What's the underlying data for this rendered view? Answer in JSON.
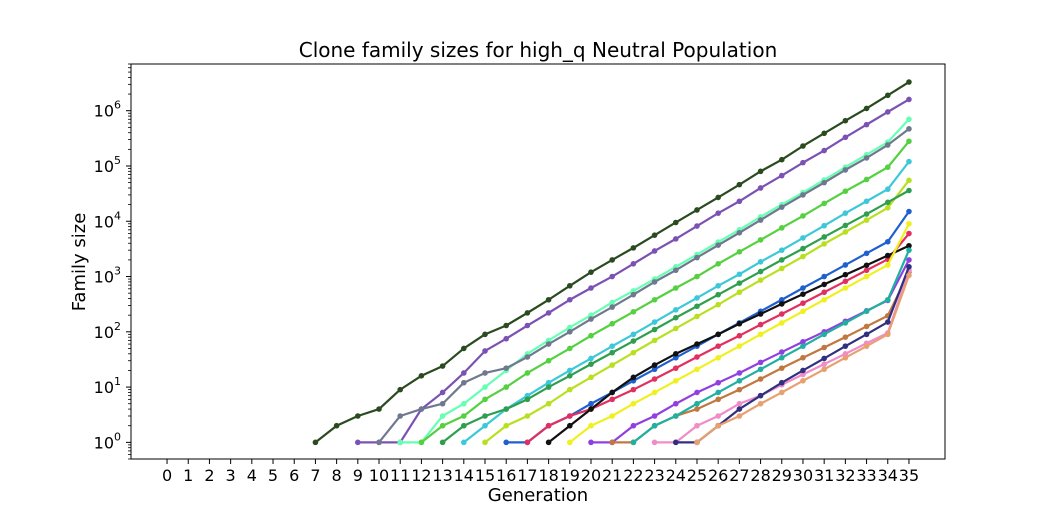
{
  "chart_data": {
    "type": "line",
    "title": "Clone family sizes for high_q Neutral Population",
    "xlabel": "Generation",
    "ylabel": "Family size",
    "x_ticks": [
      "0",
      "1",
      "2",
      "3",
      "4",
      "5",
      "6",
      "7",
      "8",
      "9",
      "10",
      "11",
      "12",
      "13",
      "14",
      "15",
      "16",
      "17",
      "18",
      "19",
      "20",
      "21",
      "22",
      "23",
      "24",
      "25",
      "26",
      "27",
      "28",
      "29",
      "30",
      "31",
      "32",
      "33",
      "34",
      "35"
    ],
    "xlim": [
      -1.7,
      36.7
    ],
    "y_scale": "log",
    "ylim": [
      0.5,
      7000000
    ],
    "y_ticks": [
      1,
      10,
      100,
      1000,
      10000,
      100000,
      1000000
    ],
    "y_tick_labels": [
      {
        "base": "10",
        "exp": "0"
      },
      {
        "base": "10",
        "exp": "1"
      },
      {
        "base": "10",
        "exp": "2"
      },
      {
        "base": "10",
        "exp": "3"
      },
      {
        "base": "10",
        "exp": "4"
      },
      {
        "base": "10",
        "exp": "5"
      },
      {
        "base": "10",
        "exp": "6"
      }
    ],
    "grid": false,
    "legend": "none",
    "marker": "circle",
    "series": [
      {
        "color": "#2a4a1f",
        "x": [
          7,
          8,
          9,
          10,
          11,
          12,
          13,
          14,
          15,
          16,
          17,
          18,
          19,
          20,
          21,
          22,
          23,
          24,
          25,
          26,
          27,
          28,
          29,
          30,
          31,
          32,
          33,
          34,
          35
        ],
        "y": [
          1,
          2,
          3,
          4,
          9,
          16,
          24,
          50,
          90,
          130,
          220,
          380,
          680,
          1200,
          2000,
          3300,
          5600,
          9500,
          16000,
          27000,
          46000,
          80000,
          130000,
          230000,
          390000,
          660000,
          1100000,
          1900000,
          3300000
        ]
      },
      {
        "color": "#7b52b4",
        "x": [
          9,
          10,
          11,
          12,
          13,
          14,
          15,
          16,
          17,
          18,
          19,
          20,
          21,
          22,
          23,
          24,
          25,
          26,
          27,
          28,
          29,
          30,
          31,
          32,
          33,
          34,
          35
        ],
        "y": [
          1,
          1,
          1,
          4,
          8,
          18,
          45,
          75,
          130,
          220,
          380,
          620,
          1000,
          1700,
          2900,
          4800,
          8200,
          14000,
          23000,
          40000,
          67000,
          115000,
          190000,
          330000,
          560000,
          950000,
          1600000
        ]
      },
      {
        "color": "#66ffb3",
        "x": [
          11,
          12,
          13,
          14,
          15,
          16,
          17,
          18,
          19,
          20,
          21,
          22,
          23,
          24,
          25,
          26,
          27,
          28,
          29,
          30,
          31,
          32,
          33,
          34,
          35
        ],
        "y": [
          1,
          1,
          3,
          5,
          10,
          20,
          40,
          70,
          120,
          200,
          340,
          550,
          900,
          1500,
          2500,
          4200,
          7000,
          12000,
          20000,
          33000,
          56000,
          95000,
          160000,
          270000,
          700000
        ]
      },
      {
        "color": "#707890",
        "x": [
          10,
          11,
          12,
          13,
          14,
          15,
          16,
          17,
          18,
          19,
          20,
          21,
          22,
          23,
          24,
          25,
          26,
          27,
          28,
          29,
          30,
          31,
          32,
          33,
          34,
          35
        ],
        "y": [
          1,
          3,
          4,
          5,
          12,
          18,
          22,
          35,
          60,
          100,
          170,
          280,
          470,
          800,
          1300,
          2200,
          3700,
          6200,
          10500,
          18000,
          30000,
          50000,
          85000,
          140000,
          240000,
          470000
        ]
      },
      {
        "color": "#55d040",
        "x": [
          12,
          13,
          14,
          15,
          16,
          17,
          18,
          19,
          20,
          21,
          22,
          23,
          24,
          25,
          26,
          27,
          28,
          29,
          30,
          31,
          32,
          33,
          34,
          35
        ],
        "y": [
          1,
          2,
          3,
          6,
          10,
          18,
          30,
          50,
          85,
          140,
          230,
          380,
          620,
          1000,
          1700,
          2800,
          4600,
          7600,
          12500,
          21000,
          35000,
          57000,
          95000,
          280000
        ]
      },
      {
        "color": "#3cc8d8",
        "x": [
          14,
          15,
          16,
          17,
          18,
          19,
          20,
          21,
          22,
          23,
          24,
          25,
          26,
          27,
          28,
          29,
          30,
          31,
          32,
          33,
          34,
          35
        ],
        "y": [
          1,
          2,
          4,
          7,
          12,
          20,
          33,
          55,
          90,
          150,
          250,
          410,
          680,
          1100,
          1850,
          3000,
          5000,
          8300,
          14000,
          23000,
          38000,
          120000
        ]
      },
      {
        "color": "#b8e020",
        "x": [
          15,
          16,
          17,
          18,
          19,
          20,
          21,
          22,
          23,
          24,
          25,
          26,
          27,
          28,
          29,
          30,
          31,
          32,
          33,
          34,
          35
        ],
        "y": [
          1,
          2,
          3,
          5,
          9,
          15,
          25,
          42,
          70,
          115,
          190,
          310,
          520,
          860,
          1400,
          2300,
          3900,
          6400,
          10500,
          17500,
          55000
        ]
      },
      {
        "color": "#2f9e4f",
        "x": [
          13,
          14,
          15,
          16,
          17,
          18,
          19,
          20,
          21,
          22,
          23,
          24,
          25,
          26,
          27,
          28,
          29,
          30,
          31,
          32,
          33,
          34,
          35
        ],
        "y": [
          1,
          2,
          3,
          4,
          6,
          10,
          16,
          26,
          42,
          68,
          110,
          180,
          290,
          470,
          760,
          1230,
          2000,
          3200,
          5200,
          8400,
          13500,
          22000,
          36000
        ]
      },
      {
        "color": "#1f5fd0",
        "x": [
          16,
          17,
          18,
          19,
          20,
          21,
          22,
          23,
          24,
          25,
          26,
          27,
          28,
          29,
          30,
          31,
          32,
          33,
          34,
          35
        ],
        "y": [
          1,
          1,
          2,
          3,
          5,
          8,
          13,
          21,
          34,
          55,
          90,
          145,
          235,
          380,
          620,
          1000,
          1620,
          2630,
          4260,
          15000
        ]
      },
      {
        "color": "#e03060",
        "x": [
          17,
          18,
          19,
          20,
          21,
          22,
          23,
          24,
          25,
          26,
          27,
          28,
          29,
          30,
          31,
          32,
          33,
          34,
          35
        ],
        "y": [
          1,
          2,
          3,
          4,
          6,
          9,
          14,
          22,
          35,
          55,
          85,
          135,
          210,
          330,
          520,
          820,
          1300,
          2050,
          6000
        ]
      },
      {
        "color": "#111111",
        "x": [
          18,
          19,
          20,
          21,
          22,
          23,
          24,
          25,
          26,
          27,
          28,
          29,
          30,
          31,
          32,
          33,
          34,
          35
        ],
        "y": [
          1,
          2,
          4,
          8,
          15,
          25,
          40,
          60,
          90,
          140,
          210,
          320,
          480,
          720,
          1080,
          1600,
          2400,
          3600
        ]
      },
      {
        "color": "#f0f020",
        "x": [
          19,
          20,
          21,
          22,
          23,
          24,
          25,
          26,
          27,
          28,
          29,
          30,
          31,
          32,
          33,
          34,
          35
        ],
        "y": [
          1,
          2,
          3,
          5,
          8,
          13,
          21,
          34,
          55,
          90,
          145,
          235,
          380,
          620,
          1000,
          1620,
          9000
        ]
      },
      {
        "color": "#9040e0",
        "x": [
          20,
          21,
          22,
          23,
          24,
          25,
          26,
          27,
          28,
          29,
          30,
          31,
          32,
          33,
          34,
          35
        ],
        "y": [
          1,
          1,
          2,
          3,
          5,
          8,
          12,
          18,
          28,
          43,
          66,
          100,
          155,
          240,
          370,
          2000
        ]
      },
      {
        "color": "#c07840",
        "x": [
          21,
          22,
          23,
          24,
          25,
          26,
          27,
          28,
          29,
          30,
          31,
          32,
          33,
          34,
          35
        ],
        "y": [
          1,
          1,
          2,
          3,
          4,
          6,
          9,
          14,
          22,
          34,
          52,
          80,
          125,
          195,
          1200
        ]
      },
      {
        "color": "#20b0a0",
        "x": [
          22,
          23,
          24,
          25,
          26,
          27,
          28,
          29,
          30,
          31,
          32,
          33,
          34,
          35
        ],
        "y": [
          1,
          2,
          3,
          5,
          8,
          13,
          21,
          34,
          55,
          90,
          145,
          235,
          380,
          3000
        ]
      },
      {
        "color": "#f08cc8",
        "x": [
          23,
          24,
          25,
          26,
          27,
          28,
          29,
          30,
          31,
          32,
          33,
          34,
          35
        ],
        "y": [
          1,
          1,
          2,
          3,
          5,
          7,
          11,
          17,
          26,
          40,
          62,
          95,
          1300
        ]
      },
      {
        "color": "#303080",
        "x": [
          24,
          25,
          26,
          27,
          28,
          29,
          30,
          31,
          32,
          33,
          34,
          35
        ],
        "y": [
          1,
          1,
          2,
          4,
          7,
          12,
          20,
          33,
          55,
          90,
          150,
          1500
        ]
      },
      {
        "color": "#e8a070",
        "x": [
          25,
          26,
          27,
          28,
          29,
          30,
          31,
          32,
          33,
          34,
          35
        ],
        "y": [
          1,
          2,
          3,
          5,
          8,
          13,
          21,
          34,
          55,
          90,
          1050
        ]
      }
    ]
  }
}
